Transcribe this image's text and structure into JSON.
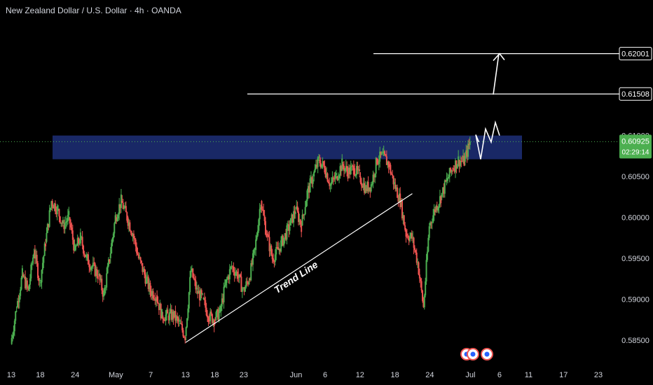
{
  "header": {
    "title": "New Zealand Dollar / U.S. Dollar · 4h · OANDA"
  },
  "chart_data": {
    "type": "candlestick",
    "ylim": [
      0.5825,
      0.624
    ],
    "y_ticks": [
      "0.62001",
      "0.61508",
      "0.61000",
      "0.60500",
      "0.60000",
      "0.59500",
      "0.59000",
      "0.58500"
    ],
    "x_ticks": [
      "13",
      "18",
      "24",
      "May",
      "7",
      "13",
      "18",
      "23",
      "Jun",
      "6",
      "12",
      "18",
      "24",
      "Jul",
      "6",
      "11",
      "17",
      "23"
    ],
    "price_label": {
      "value": "0.60925",
      "countdown": "02:29:14"
    },
    "levels": [
      {
        "label": "0.62001",
        "value": 0.62001
      },
      {
        "label": "0.61508",
        "value": 0.61508
      }
    ],
    "zone": {
      "top": 0.61,
      "bottom": 0.6071
    },
    "trend_line": {
      "label": "Trend Line",
      "from": [
        "May 13",
        0.5847
      ],
      "to": [
        "Jun 21",
        0.6029
      ]
    },
    "colors": {
      "up": "#26a69a",
      "up_body": "#4caf50",
      "down": "#ef5350",
      "zone": "#1a2a6c",
      "price": "#4caf50",
      "axis_text": "#d1d4dc",
      "bg": "#000000"
    },
    "series": [
      {
        "name": "",
        "points": [
          [
            "Apr 13",
            0.5845
          ],
          [
            "Apr 14",
            0.589
          ],
          [
            "Apr 15",
            0.593
          ],
          [
            "Apr 16",
            0.591
          ],
          [
            "Apr 17",
            0.596
          ],
          [
            "Apr 18",
            0.592
          ],
          [
            "Apr 19",
            0.597
          ],
          [
            "Apr 20",
            0.602
          ],
          [
            "Apr 21",
            0.601
          ],
          [
            "Apr 22",
            0.599
          ],
          [
            "Apr 23",
            0.6
          ],
          [
            "Apr 24",
            0.596
          ],
          [
            "Apr 25",
            0.5975
          ],
          [
            "Apr 26",
            0.595
          ],
          [
            "Apr 27",
            0.594
          ],
          [
            "Apr 28",
            0.593
          ],
          [
            "Apr 29",
            0.5905
          ],
          [
            "Apr 30",
            0.595
          ],
          [
            "May 1",
            0.6
          ],
          [
            "May 2",
            0.602
          ],
          [
            "May 3",
            0.6
          ],
          [
            "May 4",
            0.598
          ],
          [
            "May 5",
            0.595
          ],
          [
            "May 6",
            0.593
          ],
          [
            "May 7",
            0.591
          ],
          [
            "May 8",
            0.5905
          ],
          [
            "May 9",
            0.588
          ],
          [
            "May 10",
            0.588
          ],
          [
            "May 11",
            0.588
          ],
          [
            "May 12",
            0.587
          ],
          [
            "May 13",
            0.5855
          ],
          [
            "May 14",
            0.5935
          ],
          [
            "May 15",
            0.591
          ],
          [
            "May 16",
            0.59
          ],
          [
            "May 17",
            0.588
          ],
          [
            "May 18",
            0.5875
          ],
          [
            "May 19",
            0.5885
          ],
          [
            "May 20",
            0.592
          ],
          [
            "May 21",
            0.594
          ],
          [
            "May 22",
            0.593
          ],
          [
            "May 23",
            0.591
          ],
          [
            "May 24",
            0.5925
          ],
          [
            "May 25",
            0.596
          ],
          [
            "May 26",
            0.602
          ],
          [
            "May 27",
            0.598
          ],
          [
            "May 28",
            0.595
          ],
          [
            "May 29",
            0.596
          ],
          [
            "May 30",
            0.5975
          ],
          [
            "May 31",
            0.599
          ],
          [
            "Jun 1",
            0.601
          ],
          [
            "Jun 2",
            0.599
          ],
          [
            "Jun 3",
            0.603
          ],
          [
            "Jun 4",
            0.605
          ],
          [
            "Jun 5",
            0.607
          ],
          [
            "Jun 6",
            0.606
          ],
          [
            "Jun 7",
            0.604
          ],
          [
            "Jun 8",
            0.605
          ],
          [
            "Jun 9",
            0.6065
          ],
          [
            "Jun 10",
            0.6055
          ],
          [
            "Jun 11",
            0.606
          ],
          [
            "Jun 12",
            0.605
          ],
          [
            "Jun 13",
            0.6035
          ],
          [
            "Jun 14",
            0.604
          ],
          [
            "Jun 15",
            0.607
          ],
          [
            "Jun 16",
            0.6075
          ],
          [
            "Jun 17",
            0.6065
          ],
          [
            "Jun 18",
            0.604
          ],
          [
            "Jun 19",
            0.602
          ],
          [
            "Jun 20",
            0.598
          ],
          [
            "Jun 21",
            0.5975
          ],
          [
            "Jun 22",
            0.5945
          ],
          [
            "Jun 23",
            0.589
          ],
          [
            "Jun 24",
            0.599
          ],
          [
            "Jun 25",
            0.601
          ],
          [
            "Jun 26",
            0.6025
          ],
          [
            "Jun 27",
            0.6045
          ],
          [
            "Jun 28",
            0.606
          ],
          [
            "Jun 29",
            0.607
          ],
          [
            "Jun 30",
            0.6068
          ],
          [
            "Jul 1",
            0.6092
          ]
        ]
      }
    ],
    "projection": [
      [
        "Jul 2",
        0.6101
      ],
      [
        "Jul 3",
        0.6071
      ],
      [
        "Jul 4",
        0.6108
      ],
      [
        "Jul 5",
        0.6092
      ],
      [
        "Jul 6",
        0.6116
      ],
      [
        "Jul 7",
        0.61
      ],
      [
        "Jul 8",
        0.62
      ]
    ]
  }
}
